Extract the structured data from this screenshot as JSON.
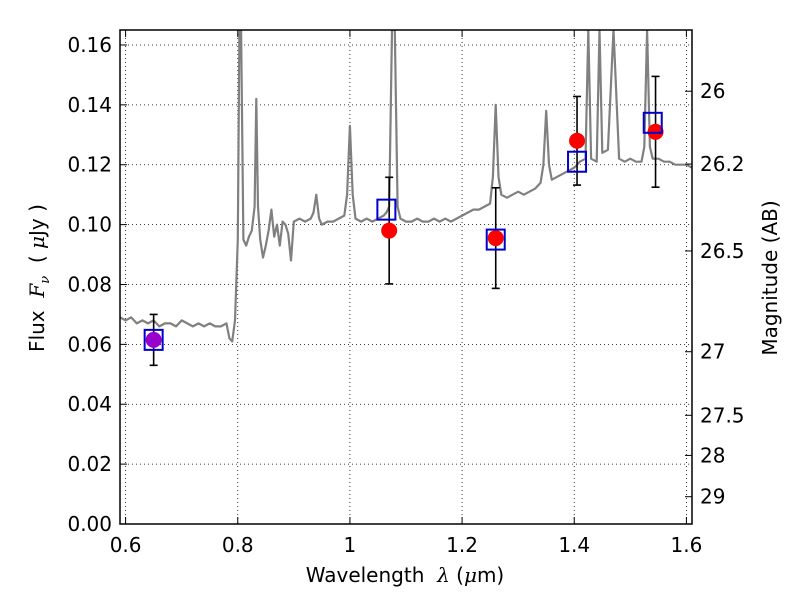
{
  "chart_data": {
    "type": "scatter",
    "title": "",
    "xlabel": "Wavelength  λ (μm)",
    "ylabel": "Flux  F_ν  ( μJy )",
    "ylabel_parts": {
      "prefix": "Flux  ",
      "var": "F",
      "sub": "ν",
      "open": "  ( ",
      "mu": "μ",
      "unit": "Jy )"
    },
    "xlabel_parts": {
      "prefix": "Wavelength  ",
      "var": "λ",
      "open": " (",
      "mu": "μ",
      "unit": "m)"
    },
    "ylabel_right": "Magnitude (AB)",
    "xlim": [
      0.59,
      1.61
    ],
    "ylim": [
      0.0,
      0.165
    ],
    "grid": true,
    "x_ticks": [
      {
        "value": 0.6,
        "label": "0.6"
      },
      {
        "value": 0.8,
        "label": "0.8"
      },
      {
        "value": 1.0,
        "label": "1"
      },
      {
        "value": 1.2,
        "label": "1.2"
      },
      {
        "value": 1.4,
        "label": "1.4"
      },
      {
        "value": 1.6,
        "label": "1.6"
      }
    ],
    "y_ticks": [
      {
        "value": 0.0,
        "label": "0.00"
      },
      {
        "value": 0.02,
        "label": "0.02"
      },
      {
        "value": 0.04,
        "label": "0.04"
      },
      {
        "value": 0.06,
        "label": "0.06"
      },
      {
        "value": 0.08,
        "label": "0.08"
      },
      {
        "value": 0.1,
        "label": "0.10"
      },
      {
        "value": 0.12,
        "label": "0.12"
      },
      {
        "value": 0.14,
        "label": "0.14"
      },
      {
        "value": 0.16,
        "label": "0.16"
      }
    ],
    "mag_ticks": [
      {
        "mag": 26.0,
        "label": "26"
      },
      {
        "mag": 26.2,
        "label": "26.2"
      },
      {
        "mag": 26.5,
        "label": "26.5"
      },
      {
        "mag": 27.0,
        "label": "27"
      },
      {
        "mag": 27.5,
        "label": "27.5"
      },
      {
        "mag": 28.0,
        "label": "28"
      },
      {
        "mag": 29.0,
        "label": "29"
      }
    ],
    "series": [
      {
        "kind": "line",
        "color": "#808080",
        "points": [
          [
            0.59,
            0.069
          ],
          [
            0.6,
            0.068
          ],
          [
            0.61,
            0.069
          ],
          [
            0.62,
            0.067
          ],
          [
            0.63,
            0.068
          ],
          [
            0.64,
            0.067
          ],
          [
            0.65,
            0.068
          ],
          [
            0.66,
            0.066
          ],
          [
            0.67,
            0.067
          ],
          [
            0.68,
            0.067
          ],
          [
            0.69,
            0.066
          ],
          [
            0.7,
            0.068
          ],
          [
            0.71,
            0.067
          ],
          [
            0.72,
            0.066
          ],
          [
            0.73,
            0.067
          ],
          [
            0.74,
            0.066
          ],
          [
            0.75,
            0.067
          ],
          [
            0.76,
            0.066
          ],
          [
            0.77,
            0.066
          ],
          [
            0.78,
            0.067
          ],
          [
            0.785,
            0.062
          ],
          [
            0.79,
            0.061
          ],
          [
            0.795,
            0.068
          ],
          [
            0.8,
            0.095
          ],
          [
            0.803,
            0.165
          ],
          [
            0.806,
            0.165
          ],
          [
            0.81,
            0.095
          ],
          [
            0.815,
            0.093
          ],
          [
            0.82,
            0.096
          ],
          [
            0.825,
            0.098
          ],
          [
            0.83,
            0.106
          ],
          [
            0.833,
            0.142
          ],
          [
            0.836,
            0.106
          ],
          [
            0.84,
            0.095
          ],
          [
            0.845,
            0.089
          ],
          [
            0.85,
            0.093
          ],
          [
            0.855,
            0.098
          ],
          [
            0.86,
            0.105
          ],
          [
            0.865,
            0.096
          ],
          [
            0.87,
            0.1
          ],
          [
            0.875,
            0.093
          ],
          [
            0.88,
            0.101
          ],
          [
            0.885,
            0.1
          ],
          [
            0.89,
            0.097
          ],
          [
            0.895,
            0.088
          ],
          [
            0.9,
            0.101
          ],
          [
            0.91,
            0.102
          ],
          [
            0.92,
            0.101
          ],
          [
            0.93,
            0.102
          ],
          [
            0.935,
            0.104
          ],
          [
            0.94,
            0.11
          ],
          [
            0.945,
            0.102
          ],
          [
            0.95,
            0.1
          ],
          [
            0.96,
            0.101
          ],
          [
            0.97,
            0.101
          ],
          [
            0.98,
            0.102
          ],
          [
            0.99,
            0.103
          ],
          [
            0.995,
            0.11
          ],
          [
            1.0,
            0.133
          ],
          [
            1.005,
            0.11
          ],
          [
            1.01,
            0.102
          ],
          [
            1.02,
            0.101
          ],
          [
            1.03,
            0.102
          ],
          [
            1.04,
            0.101
          ],
          [
            1.05,
            0.102
          ],
          [
            1.06,
            0.103
          ],
          [
            1.065,
            0.104
          ],
          [
            1.07,
            0.106
          ],
          [
            1.075,
            0.165
          ],
          [
            1.08,
            0.165
          ],
          [
            1.085,
            0.106
          ],
          [
            1.09,
            0.102
          ],
          [
            1.1,
            0.101
          ],
          [
            1.11,
            0.101
          ],
          [
            1.12,
            0.102
          ],
          [
            1.13,
            0.101
          ],
          [
            1.14,
            0.101
          ],
          [
            1.15,
            0.102
          ],
          [
            1.16,
            0.101
          ],
          [
            1.17,
            0.102
          ],
          [
            1.18,
            0.101
          ],
          [
            1.19,
            0.102
          ],
          [
            1.2,
            0.103
          ],
          [
            1.21,
            0.104
          ],
          [
            1.22,
            0.105
          ],
          [
            1.23,
            0.105
          ],
          [
            1.24,
            0.106
          ],
          [
            1.25,
            0.107
          ],
          [
            1.255,
            0.116
          ],
          [
            1.26,
            0.14
          ],
          [
            1.265,
            0.116
          ],
          [
            1.27,
            0.11
          ],
          [
            1.28,
            0.109
          ],
          [
            1.29,
            0.11
          ],
          [
            1.3,
            0.111
          ],
          [
            1.31,
            0.11
          ],
          [
            1.32,
            0.111
          ],
          [
            1.33,
            0.112
          ],
          [
            1.34,
            0.114
          ],
          [
            1.345,
            0.12
          ],
          [
            1.35,
            0.138
          ],
          [
            1.355,
            0.12
          ],
          [
            1.36,
            0.115
          ],
          [
            1.37,
            0.116
          ],
          [
            1.38,
            0.117
          ],
          [
            1.39,
            0.118
          ],
          [
            1.4,
            0.119
          ],
          [
            1.41,
            0.121
          ],
          [
            1.42,
            0.122
          ],
          [
            1.425,
            0.165
          ],
          [
            1.43,
            0.122
          ],
          [
            1.44,
            0.121
          ],
          [
            1.445,
            0.165
          ],
          [
            1.45,
            0.124
          ],
          [
            1.46,
            0.125
          ],
          [
            1.47,
            0.165
          ],
          [
            1.48,
            0.122
          ],
          [
            1.49,
            0.121
          ],
          [
            1.5,
            0.122
          ],
          [
            1.51,
            0.121
          ],
          [
            1.52,
            0.121
          ],
          [
            1.525,
            0.126
          ],
          [
            1.53,
            0.165
          ],
          [
            1.535,
            0.126
          ],
          [
            1.54,
            0.122
          ],
          [
            1.55,
            0.122
          ],
          [
            1.56,
            0.121
          ],
          [
            1.57,
            0.121
          ],
          [
            1.58,
            0.12
          ],
          [
            1.59,
            0.12
          ],
          [
            1.6,
            0.12
          ],
          [
            1.61,
            0.119
          ]
        ]
      },
      {
        "kind": "squares",
        "color": "#0000cc",
        "points": [
          [
            0.65,
            0.0615
          ],
          [
            1.065,
            0.105
          ],
          [
            1.26,
            0.095
          ],
          [
            1.405,
            0.121
          ],
          [
            1.54,
            0.134
          ]
        ]
      },
      {
        "kind": "points",
        "color": "#ff0000",
        "points": [
          [
            0.65,
            0.0615,
            0.0085
          ],
          [
            1.07,
            0.098,
            0.0178
          ],
          [
            1.26,
            0.0955,
            0.0168
          ],
          [
            1.405,
            0.128,
            0.0148
          ],
          [
            1.545,
            0.131,
            0.0185
          ]
        ]
      }
    ],
    "overlap_color": "#9900cc"
  }
}
